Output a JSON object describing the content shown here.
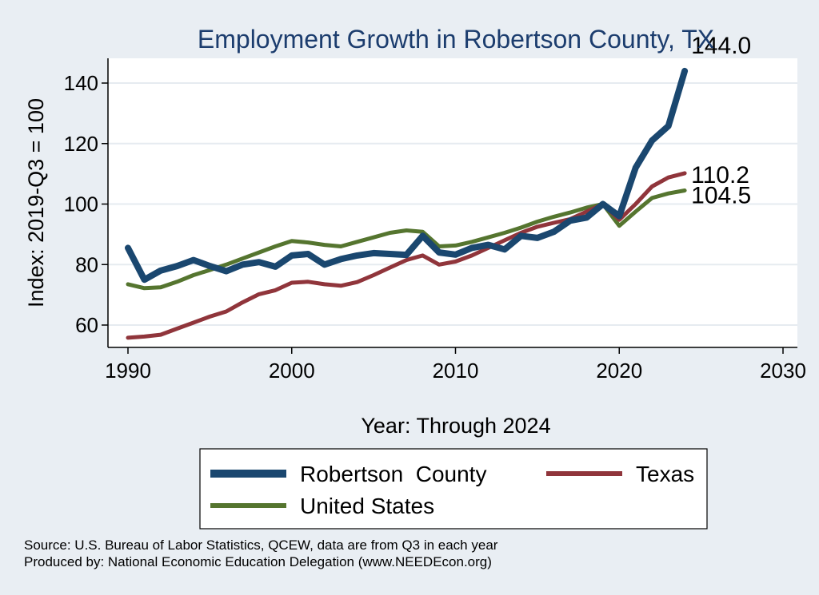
{
  "chart_data": {
    "type": "line",
    "title": "Employment Growth in Robertson County, TX",
    "xlabel": "Year: Through 2024",
    "ylabel": "Index: 2019-Q3 = 100",
    "xlim": [
      1990,
      2030
    ],
    "ylim": [
      52,
      148
    ],
    "x_ticks": [
      1990,
      2000,
      2010,
      2020,
      2030
    ],
    "y_ticks": [
      60,
      80,
      100,
      120,
      140
    ],
    "grid": "horizontal",
    "legend_position": "bottom",
    "x": [
      1990,
      1991,
      1992,
      1993,
      1994,
      1995,
      1996,
      1997,
      1998,
      1999,
      2000,
      2001,
      2002,
      2003,
      2004,
      2005,
      2006,
      2007,
      2008,
      2009,
      2010,
      2011,
      2012,
      2013,
      2014,
      2015,
      2016,
      2017,
      2018,
      2019,
      2020,
      2021,
      2022,
      2023,
      2024
    ],
    "series": [
      {
        "name": "Robertson  County",
        "color": "#1a476f",
        "stroke_weight": "thick",
        "end_label": "144.0",
        "values": [
          85.5,
          75.0,
          78.0,
          79.5,
          81.5,
          79.5,
          77.8,
          80.0,
          80.8,
          79.3,
          83.0,
          83.5,
          80.0,
          81.8,
          83.0,
          83.8,
          83.5,
          83.2,
          89.5,
          84.0,
          83.3,
          85.5,
          86.5,
          85.0,
          89.5,
          88.8,
          90.8,
          94.5,
          95.5,
          100.0,
          96.0,
          112.0,
          121.0,
          125.8,
          144.0
        ]
      },
      {
        "name": "Texas",
        "color": "#90353b",
        "stroke_weight": "medium",
        "end_label": "110.2",
        "values": [
          55.8,
          56.2,
          56.8,
          58.8,
          60.8,
          62.8,
          64.5,
          67.5,
          70.2,
          71.5,
          74.0,
          74.3,
          73.5,
          73.0,
          74.2,
          76.5,
          79.0,
          81.5,
          83.0,
          80.0,
          81.0,
          83.0,
          85.5,
          88.0,
          90.5,
          92.5,
          93.8,
          95.0,
          97.5,
          100.0,
          94.8,
          100.0,
          105.8,
          108.8,
          110.2
        ]
      },
      {
        "name": "United States",
        "color": "#55752f",
        "stroke_weight": "medium",
        "end_label": "104.5",
        "values": [
          73.5,
          72.2,
          72.5,
          74.3,
          76.5,
          78.2,
          80.0,
          82.0,
          84.0,
          86.0,
          87.8,
          87.3,
          86.5,
          86.0,
          87.5,
          89.0,
          90.5,
          91.3,
          90.8,
          86.0,
          86.3,
          87.5,
          89.0,
          90.5,
          92.2,
          94.2,
          95.8,
          97.2,
          98.8,
          100.0,
          92.8,
          97.5,
          102.0,
          103.5,
          104.5
        ]
      }
    ],
    "legend": [
      {
        "label": "Robertson  County"
      },
      {
        "label": "Texas"
      },
      {
        "label": "United States"
      }
    ]
  },
  "footer": {
    "source": "Source: U.S. Bureau of Labor Statistics, QCEW, data are from Q3 in each year",
    "produced_by": "Produced by: National Economic Education Delegation (www.NEEDEcon.org)"
  }
}
